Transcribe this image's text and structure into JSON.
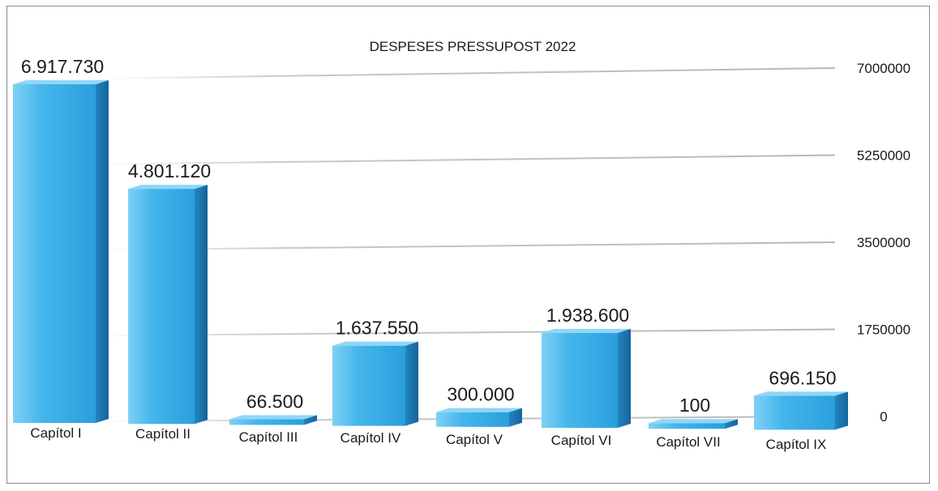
{
  "chart_data": {
    "type": "bar",
    "title": "DESPESES PRESSUPOST 2022",
    "categories": [
      "Capítol I",
      "Capítol II",
      "Capítol III",
      "Capítol IV",
      "Capítol V",
      "Capítol VI",
      "Capítol VII",
      "Capítol IX"
    ],
    "values": [
      6917730,
      4801120,
      66500,
      1637550,
      300000,
      1938600,
      100,
      696150
    ],
    "data_labels": [
      "6.917.730",
      "4.801.120",
      "66.500",
      "1.637.550",
      "300.000",
      "1.938.600",
      "100",
      "696.150"
    ],
    "yticks": [
      "0",
      "1750000",
      "3500000",
      "5250000",
      "7000000"
    ],
    "ylim": [
      0,
      7000000
    ],
    "grid": true,
    "y_axis_side": "right",
    "bar_color": "#3fb2ea",
    "bar_side_color": "#1f7fb8",
    "bar_top_color": "#8fd6f7"
  }
}
